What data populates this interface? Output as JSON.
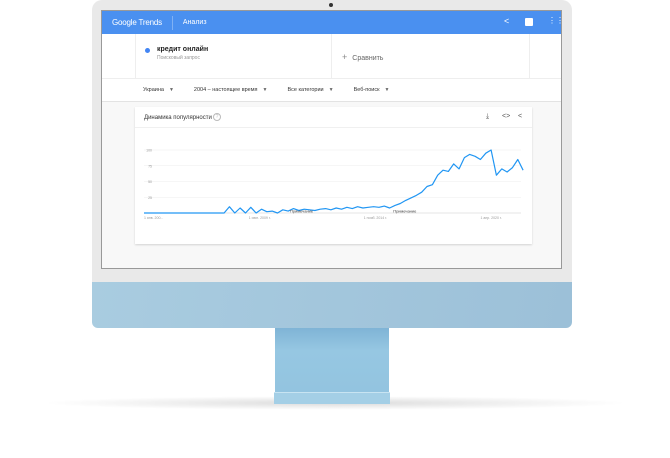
{
  "header": {
    "logo": "Google Trends",
    "title": "Анализ",
    "icons": [
      "share-icon",
      "feedback-icon",
      "apps-grid-icon"
    ],
    "color": "#4a90f0"
  },
  "search": {
    "term": "кредит онлайн",
    "term_type": "Поисковый запрос",
    "term_color": "#4285f4",
    "compare_label": "Сравнить"
  },
  "filters": [
    {
      "label": "Украина"
    },
    {
      "label": "2004 – настоящее время"
    },
    {
      "label": "Все категории"
    },
    {
      "label": "Веб-поиск"
    }
  ],
  "card": {
    "title": "Динамика популярности",
    "help": "?",
    "icons": [
      "download-icon",
      "embed-icon",
      "share-icon"
    ]
  },
  "chart_data": {
    "type": "line",
    "title": "Динамика популярности",
    "ylim": [
      0,
      100
    ],
    "yticks": [
      "100",
      "75",
      "50",
      "25"
    ],
    "xtick_labels": [
      "1 янв. 200...",
      "1 июн. 2009 г.",
      "1 нояб. 2014 г.",
      "1 апр. 2020 г."
    ],
    "xtick_dates": [
      "2004-01",
      "2009-06",
      "2014-11",
      "2020-04"
    ],
    "grid": true,
    "line_color": "#2196f3",
    "annotations": [
      {
        "date": "2010-11",
        "label": "Примечание"
      },
      {
        "date": "2015-09",
        "label": "Примечание"
      }
    ],
    "series": [
      {
        "x": [
          "2004-01",
          "2004-04",
          "2004-07",
          "2004-10",
          "2005-01",
          "2005-04",
          "2005-07",
          "2005-10",
          "2006-01",
          "2006-04",
          "2006-07",
          "2006-10",
          "2007-01",
          "2007-04",
          "2007-07",
          "2007-10",
          "2008-01",
          "2008-04",
          "2008-07",
          "2008-10",
          "2009-01",
          "2009-04",
          "2009-07",
          "2009-10",
          "2010-01",
          "2010-04",
          "2010-07",
          "2010-10",
          "2011-01",
          "2011-04",
          "2011-07",
          "2011-10",
          "2012-01",
          "2012-04",
          "2012-07",
          "2012-10",
          "2013-01",
          "2013-04",
          "2013-07",
          "2013-10",
          "2014-01",
          "2014-04",
          "2014-07",
          "2014-10",
          "2015-01",
          "2015-04",
          "2015-07",
          "2015-10",
          "2016-01",
          "2016-04",
          "2016-07",
          "2016-10",
          "2017-01",
          "2017-04",
          "2017-07",
          "2017-10",
          "2018-01",
          "2018-04",
          "2018-07",
          "2018-10",
          "2019-01",
          "2019-04",
          "2019-07",
          "2019-10",
          "2020-01",
          "2020-04",
          "2020-07",
          "2020-10",
          "2021-01",
          "2021-04",
          "2021-07",
          "2021-10"
        ],
        "values": [
          0,
          0,
          0,
          0,
          0,
          0,
          0,
          0,
          0,
          0,
          0,
          0,
          0,
          0,
          0,
          0,
          10,
          0,
          8,
          0,
          9,
          0,
          6,
          2,
          3,
          0,
          5,
          3,
          7,
          4,
          6,
          5,
          4,
          6,
          7,
          5,
          8,
          6,
          9,
          7,
          10,
          8,
          9,
          10,
          9,
          11,
          8,
          12,
          15,
          20,
          24,
          28,
          33,
          42,
          45,
          60,
          68,
          66,
          78,
          70,
          88,
          93,
          90,
          85,
          95,
          100,
          60,
          70,
          65,
          72,
          85,
          68
        ]
      }
    ]
  }
}
